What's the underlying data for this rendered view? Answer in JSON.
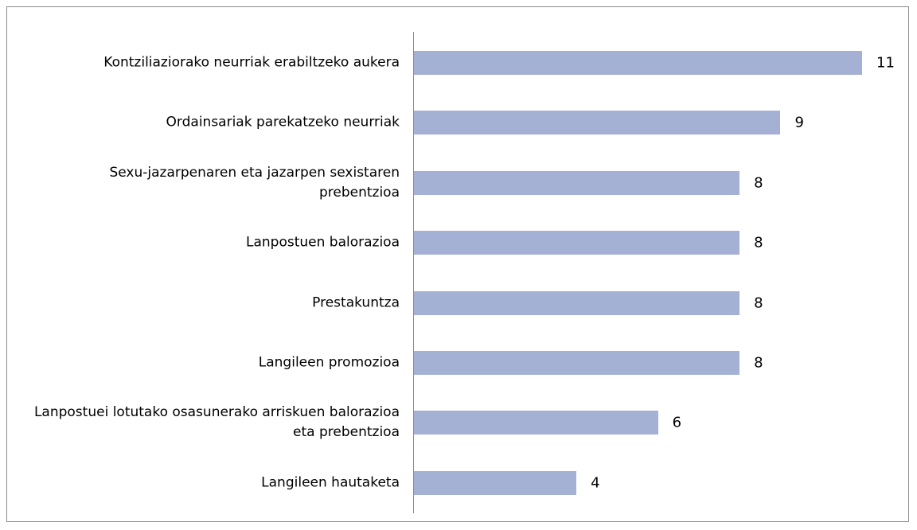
{
  "chart_data": {
    "type": "bar",
    "orientation": "horizontal",
    "categories": [
      "Kontziliaziorako neurriak erabiltzeko aukera",
      "Ordainsariak parekatzeko neurriak",
      "Sexu-jazarpenaren eta jazarpen sexistaren prebentzioa",
      "Lanpostuen balorazioa",
      "Prestakuntza",
      "Langileen promozioa",
      "Lanpostuei lotutako osasunerako arriskuen balorazioa eta prebentzioa",
      "Langileen hautaketa"
    ],
    "values": [
      11,
      9,
      8,
      8,
      8,
      8,
      6,
      4
    ],
    "color": "#a5b0d5"
  }
}
